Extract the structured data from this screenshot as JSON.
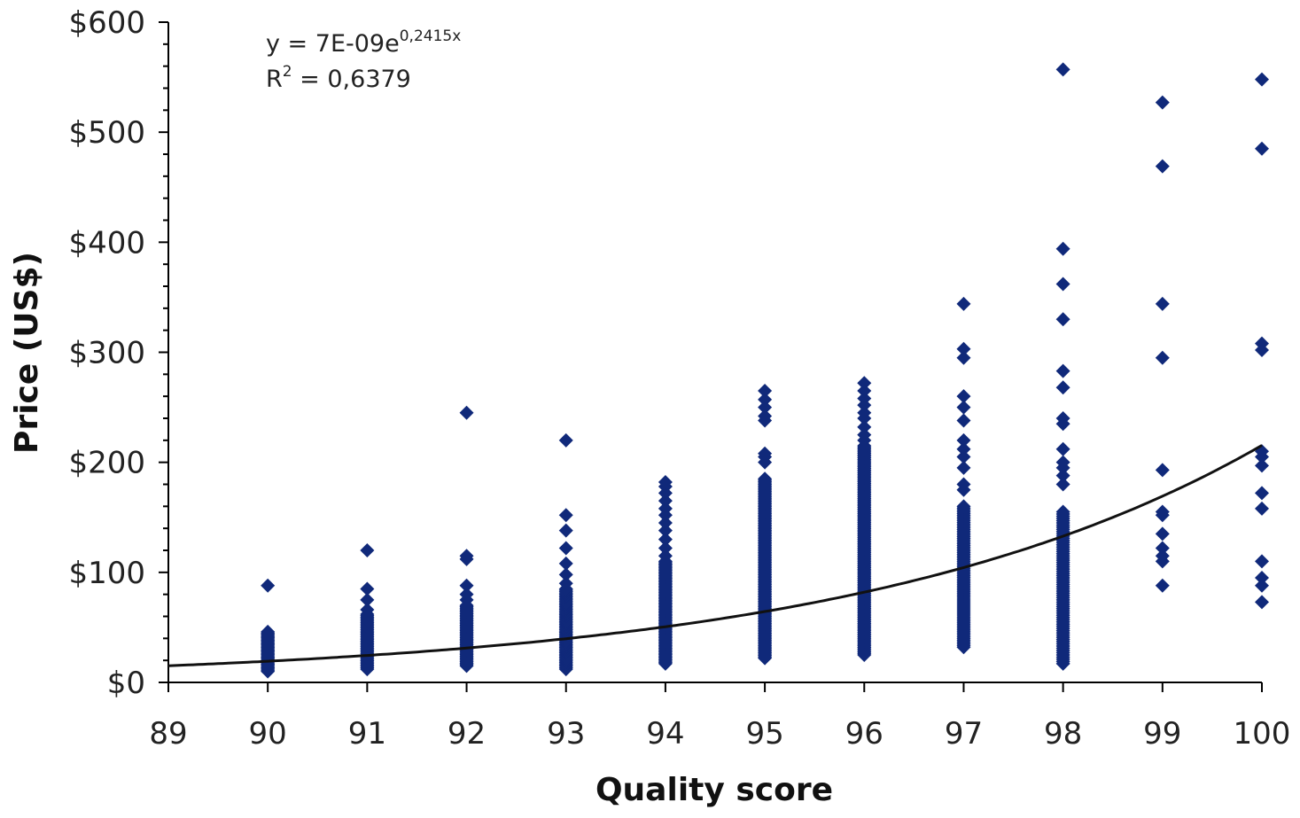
{
  "chart_data": {
    "type": "scatter",
    "xlabel": "Quality score",
    "ylabel": "Price (US$)",
    "xlim": [
      89,
      100
    ],
    "ylim": [
      0,
      600
    ],
    "x_ticks": [
      89,
      90,
      91,
      92,
      93,
      94,
      95,
      96,
      97,
      98,
      99,
      100
    ],
    "x_tick_labels": [
      "89",
      "90",
      "91",
      "92",
      "93",
      "94",
      "95",
      "96",
      "97",
      "98",
      "99",
      "100"
    ],
    "y_ticks": [
      0,
      100,
      200,
      300,
      400,
      500,
      600
    ],
    "y_tick_labels": [
      "$0",
      "$100",
      "$200",
      "$300",
      "$400",
      "$500",
      "$600"
    ],
    "grid": false,
    "marker": "diamond",
    "marker_color": "#10297a",
    "trendline": {
      "type": "exponential",
      "a": 7e-09,
      "b": 0.2415,
      "equation_label": {
        "prefix": "y = 7E-09e",
        "exponent": "0,2415x",
        "r2_label": "R",
        "r2_sup": "2",
        "r2_value": " = 0,6379"
      },
      "color": "#111111"
    },
    "series": [
      {
        "x": 90,
        "min": 10,
        "max": 46,
        "count": 34,
        "extra": [
          88
        ]
      },
      {
        "x": 91,
        "min": 12,
        "max": 62,
        "count": 40,
        "extra": [
          66,
          75,
          85,
          120
        ]
      },
      {
        "x": 92,
        "min": 15,
        "max": 70,
        "count": 44,
        "extra": [
          75,
          80,
          88,
          112,
          115,
          245
        ]
      },
      {
        "x": 93,
        "min": 12,
        "max": 85,
        "count": 60,
        "extra": [
          90,
          98,
          108,
          122,
          138,
          152,
          220
        ]
      },
      {
        "x": 94,
        "min": 17,
        "max": 110,
        "count": 80,
        "extra": [
          115,
          122,
          130,
          138,
          145,
          152,
          158,
          165,
          172,
          178,
          182
        ]
      },
      {
        "x": 95,
        "min": 22,
        "max": 185,
        "count": 130,
        "extra": [
          200,
          205,
          208,
          238,
          242,
          250,
          257,
          265
        ]
      },
      {
        "x": 96,
        "min": 25,
        "max": 215,
        "count": 140,
        "extra": [
          220,
          225,
          232,
          240,
          245,
          252,
          258,
          265,
          272
        ]
      },
      {
        "x": 97,
        "min": 32,
        "max": 160,
        "count": 80,
        "extra": [
          175,
          180,
          195,
          205,
          212,
          220,
          238,
          250,
          260,
          295,
          303,
          344
        ]
      },
      {
        "x": 98,
        "min": 17,
        "max": 155,
        "count": 70,
        "extra": [
          180,
          188,
          195,
          200,
          212,
          235,
          240,
          268,
          283,
          330,
          362,
          394,
          557
        ]
      },
      {
        "x": 99,
        "min": 88,
        "max": 88,
        "count": 1,
        "extra": [
          110,
          115,
          122,
          135,
          152,
          155,
          193,
          295,
          344,
          469,
          527
        ]
      },
      {
        "x": 100,
        "min": 73,
        "max": 73,
        "count": 1,
        "extra": [
          88,
          95,
          110,
          158,
          172,
          197,
          205,
          210,
          302,
          308,
          485,
          548
        ]
      }
    ]
  }
}
